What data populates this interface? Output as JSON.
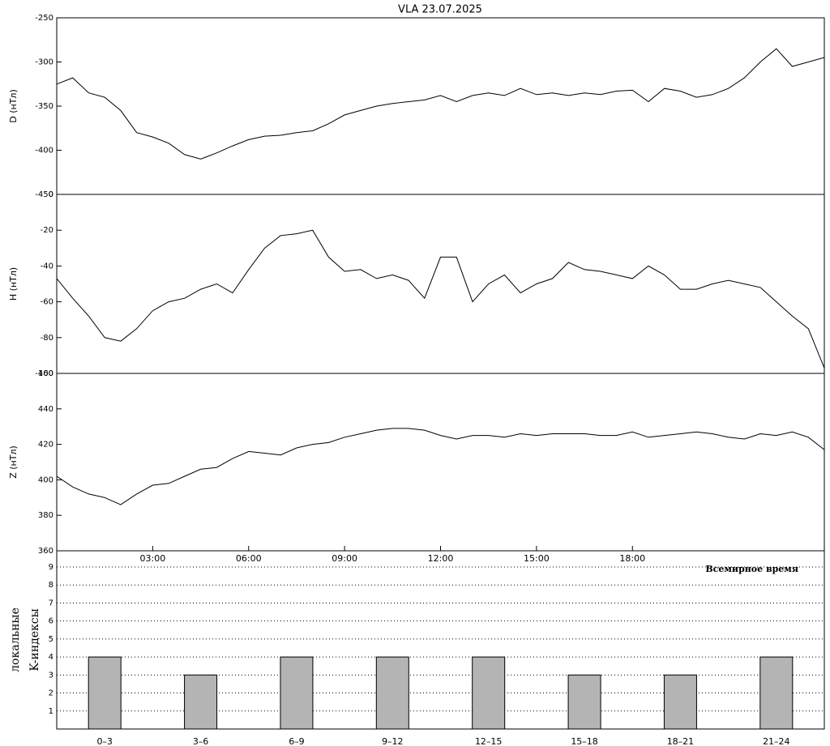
{
  "chart_data": [
    {
      "type": "line",
      "title": "VLA   23.07.2025",
      "y_label": "D (нТл)",
      "color": "#000000",
      "x": [
        0,
        0.5,
        1,
        1.5,
        2,
        2.5,
        3,
        3.5,
        4,
        4.5,
        5,
        5.5,
        6,
        6.5,
        7,
        7.5,
        8,
        8.5,
        9,
        9.5,
        10,
        10.5,
        11,
        11.5,
        12,
        12.5,
        13,
        13.5,
        14,
        14.5,
        15,
        15.5,
        16,
        16.5,
        17,
        17.5,
        18,
        18.5,
        19,
        19.5,
        20,
        20.5,
        21,
        21.5,
        22,
        22.5,
        23,
        23.5,
        24
      ],
      "values": [
        -325,
        -318,
        -335,
        -340,
        -355,
        -380,
        -385,
        -392,
        -405,
        -410,
        -403,
        -395,
        -388,
        -384,
        -383,
        -380,
        -378,
        -370,
        -360,
        -355,
        -350,
        -347,
        -345,
        -343,
        -338,
        -345,
        -338,
        -335,
        -338,
        -330,
        -337,
        -335,
        -338,
        -335,
        -337,
        -333,
        -332,
        -345,
        -330,
        -333,
        -340,
        -337,
        -330,
        -318,
        -300,
        -285,
        -305,
        -300,
        -295
      ],
      "xlim": [
        0,
        24
      ],
      "ylim": [
        -450,
        -250
      ],
      "yticks": [
        -450,
        -400,
        -350,
        -300,
        -250
      ]
    },
    {
      "type": "line",
      "y_label": "H (нТл)",
      "color": "#000000",
      "x": [
        0,
        0.5,
        1,
        1.5,
        2,
        2.5,
        3,
        3.5,
        4,
        4.5,
        5,
        5.5,
        6,
        6.5,
        7,
        7.5,
        8,
        8.5,
        9,
        9.5,
        10,
        10.5,
        11,
        11.5,
        12,
        12.5,
        13,
        13.5,
        14,
        14.5,
        15,
        15.5,
        16,
        16.5,
        17,
        17.5,
        18,
        18.5,
        19,
        19.5,
        20,
        20.5,
        21,
        21.5,
        22,
        22.5,
        23,
        23.5,
        24
      ],
      "values": [
        -47,
        -58,
        -68,
        -80,
        -82,
        -75,
        -65,
        -60,
        -58,
        -53,
        -50,
        -55,
        -42,
        -30,
        -23,
        -22,
        -20,
        -35,
        -43,
        -42,
        -47,
        -45,
        -48,
        -58,
        -35,
        -35,
        -60,
        -50,
        -45,
        -55,
        -50,
        -47,
        -38,
        -42,
        -43,
        -45,
        -47,
        -40,
        -45,
        -53,
        -53,
        -50,
        -48,
        -50,
        -52,
        -60,
        -68,
        -75,
        -97
      ],
      "xlim": [
        0,
        24
      ],
      "ylim": [
        -100,
        0
      ],
      "yticks": [
        -100,
        -80,
        -60,
        -40,
        -20,
        0
      ]
    },
    {
      "type": "line",
      "y_label": "Z (нТл)",
      "color": "#000000",
      "x": [
        0,
        0.5,
        1,
        1.5,
        2,
        2.5,
        3,
        3.5,
        4,
        4.5,
        5,
        5.5,
        6,
        6.5,
        7,
        7.5,
        8,
        8.5,
        9,
        9.5,
        10,
        10.5,
        11,
        11.5,
        12,
        12.5,
        13,
        13.5,
        14,
        14.5,
        15,
        15.5,
        16,
        16.5,
        17,
        17.5,
        18,
        18.5,
        19,
        19.5,
        20,
        20.5,
        21,
        21.5,
        22,
        22.5,
        23,
        23.5,
        24
      ],
      "values": [
        402,
        396,
        392,
        390,
        386,
        392,
        397,
        398,
        402,
        406,
        407,
        412,
        416,
        415,
        414,
        418,
        420,
        421,
        424,
        426,
        428,
        429,
        429,
        428,
        425,
        423,
        425,
        425,
        424,
        426,
        425,
        426,
        426,
        426,
        425,
        425,
        427,
        424,
        425,
        426,
        427,
        426,
        424,
        423,
        426,
        425,
        427,
        424,
        417
      ],
      "xlim": [
        0,
        24
      ],
      "ylim": [
        360,
        460
      ],
      "yticks": [
        360,
        380,
        400,
        420,
        440,
        460
      ],
      "xticks": [
        {
          "value": 3,
          "label": "03:00"
        },
        {
          "value": 6,
          "label": "06:00"
        },
        {
          "value": 9,
          "label": "09:00"
        },
        {
          "value": 12,
          "label": "12:00"
        },
        {
          "value": 15,
          "label": "15:00"
        },
        {
          "value": 18,
          "label": "18:00"
        }
      ]
    },
    {
      "type": "bar",
      "y_label": [
        "локальные",
        "K-индексы"
      ],
      "annotation": "Всемирное время",
      "color": "#b4b4b4",
      "categories": [
        "0–3",
        "3–6",
        "6–9",
        "9–12",
        "12–15",
        "15–18",
        "18–21",
        "21–24"
      ],
      "values": [
        4,
        3,
        4,
        4,
        4,
        3,
        3,
        4
      ],
      "ylim": [
        0,
        9.9
      ],
      "yticks": [
        1,
        2,
        3,
        4,
        5,
        6,
        7,
        8,
        9
      ],
      "grid": true
    }
  ]
}
